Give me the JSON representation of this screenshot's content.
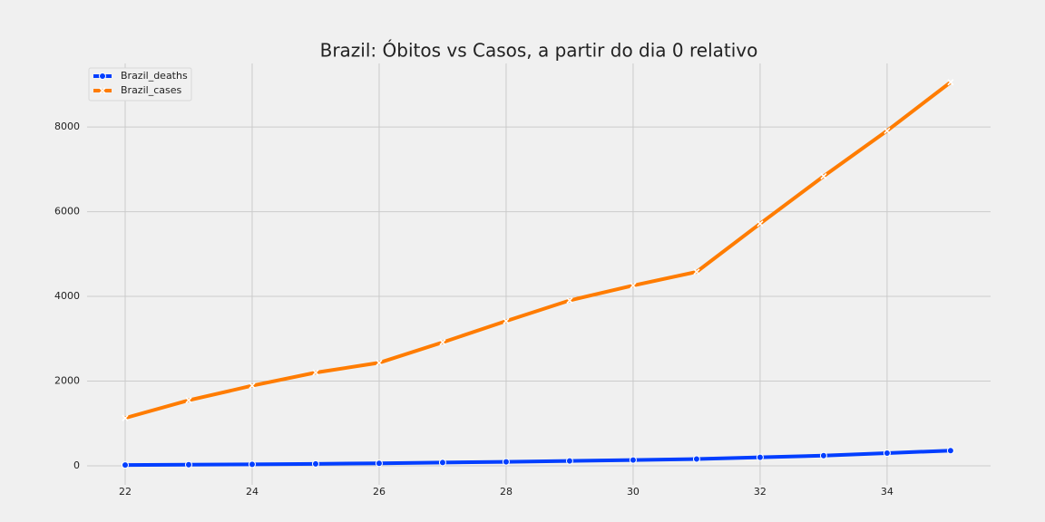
{
  "chart_data": {
    "type": "line",
    "title": "Brazil: Óbitos vs Casos, a partir do dia 0 relativo",
    "x": [
      22,
      23,
      24,
      25,
      26,
      27,
      28,
      29,
      30,
      31,
      32,
      33,
      34,
      35
    ],
    "series": [
      {
        "name": "Brazil_deaths",
        "color": "#023eff",
        "marker": "o",
        "values": [
          18,
          25,
          34,
          46,
          59,
          77,
          92,
          114,
          136,
          159,
          201,
          240,
          299,
          359
        ]
      },
      {
        "name": "Brazil_cases",
        "color": "#ff7c00",
        "marker": "x",
        "values": [
          1128,
          1546,
          1891,
          2201,
          2433,
          2915,
          3417,
          3904,
          4256,
          4579,
          5717,
          6836,
          7910,
          9056
        ]
      }
    ],
    "xlim": [
      21.4,
      35.63
    ],
    "ylim": [
      -450,
      9500
    ],
    "xticks": [
      22,
      24,
      26,
      28,
      30,
      32,
      34
    ],
    "yticks": [
      0,
      2000,
      4000,
      6000,
      8000
    ],
    "grid": true,
    "legend": "upper-left"
  }
}
